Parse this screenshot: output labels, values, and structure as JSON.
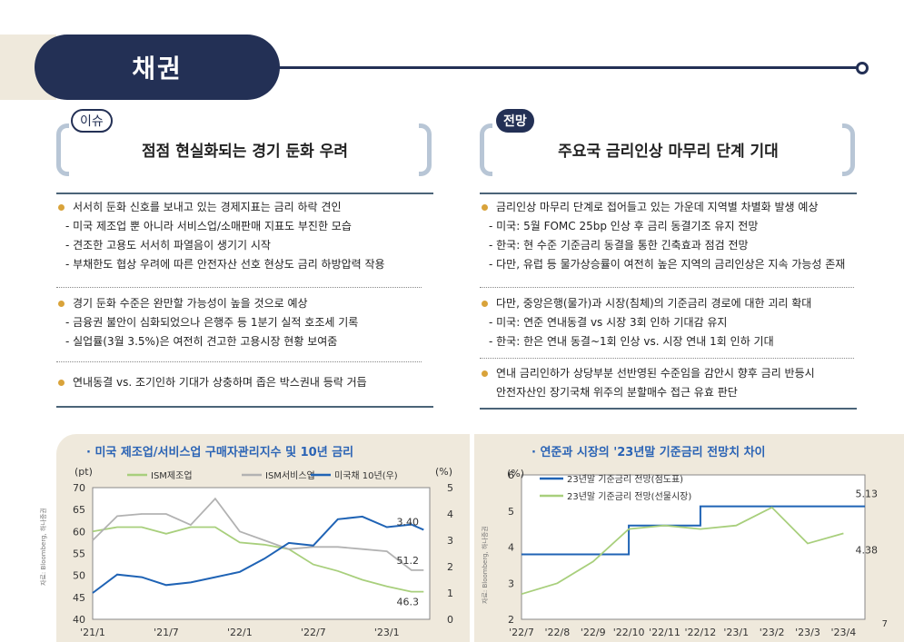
{
  "header": {
    "title": "채권"
  },
  "left": {
    "tag": "이슈",
    "headline": "점점 현실화되는 경기 둔화 우려",
    "blocks": [
      {
        "bullet": "서서히 둔화 신호를 보내고 있는 경제지표는 금리 하락 견인",
        "subs": [
          "- 미국 제조업 뿐 아니라 서비스업/소매판매 지표도 부진한 모습",
          "- 견조한 고용도 서서히 파열음이 생기기 시작",
          "- 부채한도 협상 우려에 따른 안전자산 선호 현상도 금리 하방압력 작용"
        ]
      },
      {
        "bullet": "경기 둔화 수준은 완만할 가능성이 높을 것으로 예상",
        "subs": [
          "- 금융권 불안이 심화되었으나 은행주 등 1분기 실적 호조세 기록",
          "- 실업률(3월 3.5%)은 여전히 견고한 고용시장 현황 보여줌"
        ]
      },
      {
        "bullet": "연내동결 vs. 조기인하 기대가 상충하며 좁은 박스권내 등락 거듭",
        "subs": []
      }
    ]
  },
  "right": {
    "tag": "전망",
    "headline": "주요국 금리인상 마무리 단계 기대",
    "blocks": [
      {
        "bullet": "금리인상 마무리 단계로 접어들고 있는 가운데 지역별 차별화 발생 예상",
        "subs": [
          "- 미국: 5월 FOMC 25bp 인상 후 금리 동결기조 유지 전망",
          "- 한국: 현 수준 기준금리 동결을 통한 긴축효과 점검 전망",
          "- 다만, 유럽 등 물가상승률이 여전히 높은 지역의 금리인상은 지속 가능성 존재"
        ]
      },
      {
        "bullet": "다만, 중앙은행(물가)과 시장(침체)의 기준금리 경로에 대한 괴리 확대",
        "subs": [
          "- 미국: 연준 연내동결 vs 시장 3회 인하 기대감 유지",
          "- 한국: 한은 연내 동결~1회 인상 vs. 시장 연내 1회 인하 기대"
        ]
      },
      {
        "bullet": "연내 금리인하가 상당부분 선반영된 수준임을 감안시 향후 금리 반등시",
        "subs": [
          "안전자산인 장기국채 위주의 분할매수 접근 유효 판단"
        ]
      }
    ]
  },
  "chart_data": [
    {
      "type": "line",
      "title": "· 미국 제조업/서비스업 구매자관리지수 및 10년 금리",
      "source": "자료: Bloomberg, 하나증권",
      "ylabel_left": "(pt)",
      "ylabel_right": "(%)",
      "ylim_left": [
        40,
        70
      ],
      "ylim_right": [
        0,
        5
      ],
      "yticks_left": [
        "70",
        "65",
        "60",
        "55",
        "50",
        "45",
        "40"
      ],
      "yticks_right": [
        "5",
        "4",
        "3",
        "2",
        "1",
        "0"
      ],
      "xticks": [
        "'21/1",
        "'21/7",
        "'22/1",
        "'22/7",
        "'23/1"
      ],
      "series": [
        {
          "name": "ISM제조업",
          "axis": "left",
          "color": "#a8cf7c",
          "x": [
            "21/1",
            "21/3",
            "21/5",
            "21/7",
            "21/9",
            "21/11",
            "22/1",
            "22/3",
            "22/5",
            "22/7",
            "22/9",
            "22/11",
            "23/1",
            "23/3",
            "23/4"
          ],
          "values": [
            60.0,
            61.0,
            61.0,
            59.5,
            61.0,
            61.0,
            57.5,
            57.0,
            56.0,
            52.5,
            51.0,
            49.0,
            47.5,
            46.3,
            46.3
          ]
        },
        {
          "name": "ISM서비스업",
          "axis": "left",
          "color": "#b2b2b2",
          "x": [
            "21/1",
            "21/3",
            "21/5",
            "21/7",
            "21/9",
            "21/11",
            "22/1",
            "22/3",
            "22/5",
            "22/7",
            "22/9",
            "22/11",
            "23/1",
            "23/3",
            "23/4"
          ],
          "values": [
            58.0,
            63.5,
            64.0,
            64.0,
            61.5,
            67.5,
            60.0,
            58.0,
            56.0,
            56.5,
            56.5,
            56.0,
            55.5,
            51.2,
            51.2
          ]
        },
        {
          "name": "미국채 10년(우)",
          "axis": "right",
          "color": "#1f63b5",
          "x": [
            "21/1",
            "21/3",
            "21/5",
            "21/7",
            "21/9",
            "21/11",
            "22/1",
            "22/3",
            "22/5",
            "22/7",
            "22/9",
            "22/11",
            "23/1",
            "23/3",
            "23/4"
          ],
          "values": [
            1.0,
            1.7,
            1.6,
            1.3,
            1.4,
            1.6,
            1.8,
            2.3,
            2.9,
            2.8,
            3.8,
            3.9,
            3.5,
            3.6,
            3.4
          ]
        }
      ],
      "annotations": [
        "3.40",
        "51.2",
        "46.3"
      ]
    },
    {
      "type": "line",
      "title": "· 연준과 시장의 '23년말 기준금리 전망치 차이",
      "source": "자료: Bloomberg, 하나증권",
      "ylabel": "(%)",
      "ylim": [
        2,
        6
      ],
      "yticks": [
        "6",
        "5",
        "4",
        "3",
        "2"
      ],
      "xticks": [
        "'22/7",
        "'22/8",
        "'22/9",
        "'22/10",
        "'22/11",
        "'22/12",
        "'23/1",
        "'23/2",
        "'23/3",
        "'23/4"
      ],
      "series": [
        {
          "name": "23년말 기준금리 전망(점도표)",
          "color": "#1f63b5",
          "x": [
            "22/7",
            "22/9",
            "22/10",
            "22/12",
            "23/3",
            "23/4"
          ],
          "values": [
            3.8,
            3.8,
            4.6,
            5.13,
            5.13,
            5.13
          ]
        },
        {
          "name": "23년말 기준금리 전망(선물시장)",
          "color": "#a8cf7c",
          "x": [
            "22/7",
            "22/8",
            "22/9",
            "22/10",
            "22/11",
            "22/12",
            "23/1",
            "23/2",
            "23/3",
            "23/4"
          ],
          "values": [
            2.7,
            3.0,
            3.6,
            4.5,
            4.6,
            4.5,
            4.6,
            5.1,
            4.1,
            4.38
          ]
        }
      ],
      "annotations": [
        "5.13",
        "4.38"
      ]
    }
  ],
  "page_number": "7"
}
